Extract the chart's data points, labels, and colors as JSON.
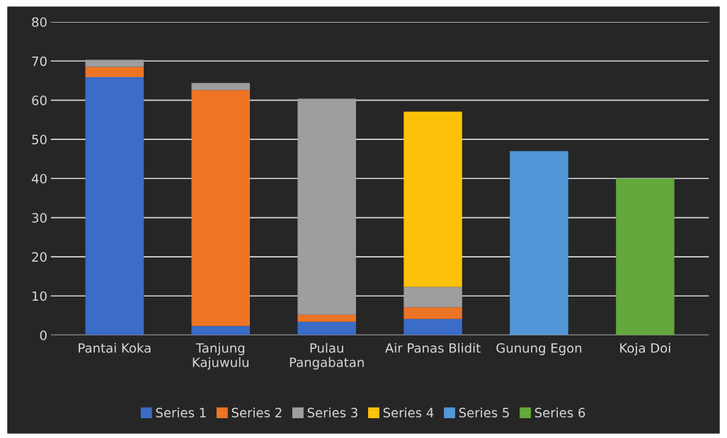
{
  "chart_data": {
    "type": "bar",
    "stacked": true,
    "categories": [
      "Pantai Koka",
      "Tanjung\nKajuwulu",
      "Pulau\nPangabatan",
      "Air Panas Blidit",
      "Gunung Egon",
      "Koja Doi"
    ],
    "series": [
      {
        "name": "Series 1",
        "color": "#3a6cc8",
        "values": [
          65.9,
          2.3,
          3.4,
          4.1,
          null,
          null
        ]
      },
      {
        "name": "Series 2",
        "color": "#ed7525",
        "values": [
          2.6,
          60.3,
          1.8,
          3.0,
          null,
          null
        ]
      },
      {
        "name": "Series 3",
        "color": "#9e9e9e",
        "values": [
          1.8,
          1.8,
          55.2,
          5.2,
          null,
          null
        ]
      },
      {
        "name": "Series 4",
        "color": "#fcc20a",
        "values": [
          null,
          null,
          null,
          44.8,
          null,
          null
        ]
      },
      {
        "name": "Series 5",
        "color": "#5196d6",
        "values": [
          null,
          null,
          null,
          null,
          47.0,
          null
        ]
      },
      {
        "name": "Series 6",
        "color": "#64a73b",
        "values": [
          null,
          null,
          null,
          null,
          null,
          40.0
        ]
      }
    ],
    "ylim": [
      0,
      80
    ],
    "yticks": [
      0,
      10,
      20,
      30,
      40,
      50,
      60,
      70,
      80
    ],
    "grid": "y",
    "legend": "bottom"
  }
}
